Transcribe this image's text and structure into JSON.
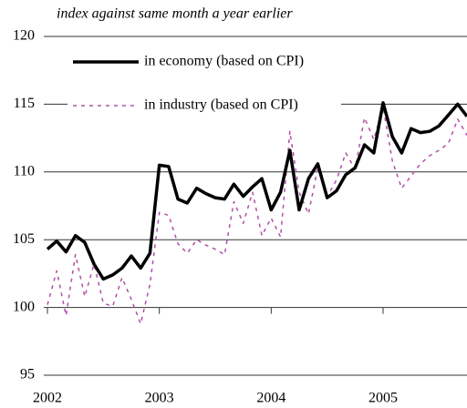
{
  "chart_data": {
    "type": "line",
    "subtitle": "index against same month a year earlier",
    "x": [
      2002,
      2002.0833,
      2002.1667,
      2002.25,
      2002.3333,
      2002.4167,
      2002.5,
      2002.5833,
      2002.6667,
      2002.75,
      2002.8333,
      2002.9167,
      2003,
      2003.0833,
      2003.1667,
      2003.25,
      2003.3333,
      2003.4167,
      2003.5,
      2003.5833,
      2003.6667,
      2003.75,
      2003.8333,
      2003.9167,
      2004,
      2004.0833,
      2004.1667,
      2004.25,
      2004.3333,
      2004.4167,
      2004.5,
      2004.5833,
      2004.6667,
      2004.75,
      2004.8333,
      2004.9167,
      2005,
      2005.0833,
      2005.1667,
      2005.25,
      2005.3333,
      2005.4167,
      2005.5,
      2005.5833,
      2005.6667,
      2005.75
    ],
    "series": [
      {
        "name": "in economy (based on CPI)",
        "color": "#000000",
        "style": "solid",
        "values": [
          104.3,
          104.9,
          104.1,
          105.3,
          104.8,
          103.2,
          102.1,
          102.4,
          102.9,
          103.8,
          102.9,
          104.0,
          110.5,
          110.4,
          108.0,
          107.7,
          108.8,
          108.4,
          108.1,
          108.0,
          109.1,
          108.2,
          108.9,
          109.5,
          107.2,
          108.5,
          111.6,
          107.2,
          109.5,
          110.6,
          108.1,
          108.6,
          109.8,
          110.3,
          112.0,
          111.4,
          115.1,
          112.6,
          111.4,
          113.2,
          112.9,
          113.0,
          113.4,
          114.2,
          115.0,
          114.1
        ]
      },
      {
        "name": "in industry (based on CPI)",
        "color": "#b34fa6",
        "style": "dotted",
        "values": [
          100.2,
          102.7,
          99.4,
          103.9,
          100.8,
          103.2,
          100.3,
          100.1,
          102.2,
          100.6,
          98.8,
          101.7,
          107.0,
          106.8,
          104.7,
          104.0,
          105.0,
          104.6,
          104.3,
          103.9,
          107.8,
          106.2,
          108.5,
          105.3,
          106.6,
          105.2,
          113.0,
          108.5,
          106.9,
          110.3,
          108.2,
          109.4,
          111.4,
          110.2,
          114.0,
          112.4,
          114.8,
          110.8,
          108.8,
          109.7,
          110.6,
          111.2,
          111.6,
          112.1,
          113.9,
          112.7
        ]
      }
    ],
    "xlim": [
      2002,
      2005.75
    ],
    "xticks": [
      2002,
      2003,
      2004,
      2005
    ],
    "ylim": [
      95,
      120
    ],
    "yticks": [
      95,
      100,
      105,
      110,
      115,
      120
    ],
    "grid": true,
    "legend": "top"
  }
}
